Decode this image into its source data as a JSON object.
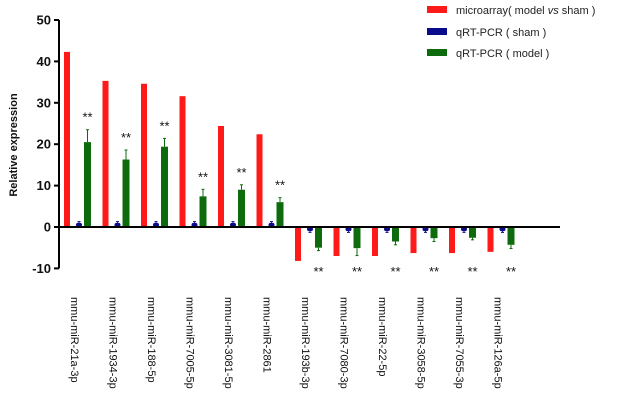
{
  "chart_data": {
    "type": "bar",
    "title": "",
    "xlabel": "",
    "ylabel": "Relative expression",
    "ylim": [
      -10,
      50
    ],
    "yticks": [
      -10,
      0,
      10,
      20,
      30,
      40,
      50
    ],
    "legend_position": "top-right",
    "categories": [
      "mmu-miR-21a-3p",
      "mmu-miR-1934-3p",
      "mmu-miR-188-5p",
      "mmu-miR-7005-5p",
      "mmu-miR-3081-5p",
      "mmu-miR-2861",
      "mmu-miR-193b-3p",
      "mmu-miR-7080-3p",
      "mmu-miR-22-5p",
      "mmu-miR-3058-5p",
      "mmu-miR-7055-3p",
      "mmu-miR-126a-5p"
    ],
    "series": [
      {
        "name": "microarray( model vs sham )",
        "name_prefix": "microarray( model ",
        "name_italic": "vs",
        "name_suffix": " sham )",
        "color": "#ff1a1a",
        "values": [
          42.3,
          35.3,
          34.6,
          31.6,
          24.4,
          22.4,
          -8.2,
          -7.0,
          -7.0,
          -6.3,
          -6.3,
          -6.0
        ]
      },
      {
        "name": "qRT-PCR ( sham )",
        "color": "#0a0a8c",
        "values": [
          1,
          1,
          1,
          1,
          1,
          1,
          -1,
          -1,
          -1,
          -1,
          -1,
          -1
        ],
        "errors": [
          0.3,
          0.3,
          0.3,
          0.3,
          0.3,
          0.3,
          0.3,
          0.3,
          0.3,
          0.3,
          0.3,
          0.3
        ]
      },
      {
        "name": "qRT-PCR ( model )",
        "color": "#0d6b0d",
        "values": [
          20.5,
          16.3,
          19.4,
          7.4,
          9.0,
          6.0,
          -5.0,
          -5.1,
          -3.5,
          -2.7,
          -2.6,
          -4.3
        ],
        "errors": [
          3.0,
          2.3,
          2.0,
          1.7,
          1.2,
          1.1,
          0.7,
          1.8,
          0.8,
          0.8,
          0.5,
          0.9
        ]
      }
    ],
    "annotations": [
      "**",
      "**",
      "**",
      "**",
      "**",
      "**",
      "**",
      "**",
      "**",
      "**",
      "**",
      "**"
    ]
  }
}
